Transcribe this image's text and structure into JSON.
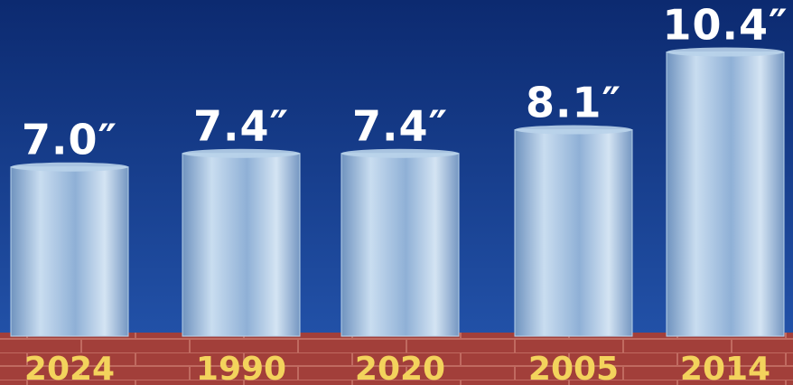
{
  "chart_data": {
    "type": "bar",
    "categories": [
      "2024",
      "1990",
      "2020",
      "2005",
      "2014"
    ],
    "values": [
      7.0,
      7.4,
      7.4,
      8.1,
      10.4
    ],
    "value_labels": [
      "7.0″",
      "7.4″",
      "7.4″",
      "8.1″",
      "10.4″"
    ],
    "color": "#b9d3ea"
  }
}
